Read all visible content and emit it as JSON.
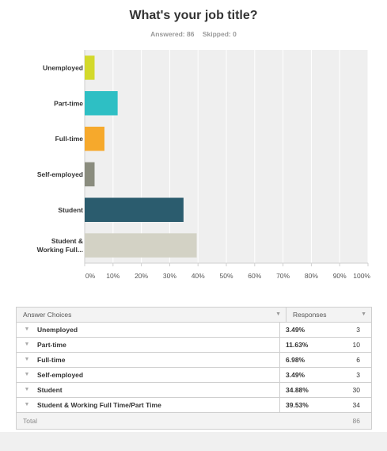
{
  "question": {
    "title": "What's your job title?",
    "answered_label": "Answered: 86",
    "skipped_label": "Skipped: 0"
  },
  "chart_data": {
    "type": "bar",
    "orientation": "horizontal",
    "categories": [
      "Unemployed",
      "Part-time",
      "Full-time",
      "Self-employed",
      "Student",
      "Student & Working Full..."
    ],
    "category_lines": [
      [
        "Unemployed"
      ],
      [
        "Part-time"
      ],
      [
        "Full-time"
      ],
      [
        "Self-employed"
      ],
      [
        "Student"
      ],
      [
        "Student &",
        "Working Full..."
      ]
    ],
    "values": [
      3.49,
      11.63,
      6.98,
      3.49,
      34.88,
      39.53
    ],
    "colors": [
      "#d3d92b",
      "#2ebfc4",
      "#f6a92c",
      "#8a8c7e",
      "#2b5c6e",
      "#d3d2c5"
    ],
    "xlim": [
      0,
      100
    ],
    "xticks": [
      "0%",
      "10%",
      "20%",
      "30%",
      "40%",
      "50%",
      "60%",
      "70%",
      "80%",
      "90%",
      "100%"
    ],
    "grid": true
  },
  "table": {
    "col1_header": "Answer Choices",
    "col2_header": "Responses",
    "rows": [
      {
        "choice": "Unemployed",
        "percent": "3.49%",
        "count": "3"
      },
      {
        "choice": "Part-time",
        "percent": "11.63%",
        "count": "10"
      },
      {
        "choice": "Full-time",
        "percent": "6.98%",
        "count": "6"
      },
      {
        "choice": "Self-employed",
        "percent": "3.49%",
        "count": "3"
      },
      {
        "choice": "Student",
        "percent": "34.88%",
        "count": "30"
      },
      {
        "choice": "Student & Working Full Time/Part Time",
        "percent": "39.53%",
        "count": "34"
      }
    ],
    "total_label": "Total",
    "total_value": "86"
  }
}
